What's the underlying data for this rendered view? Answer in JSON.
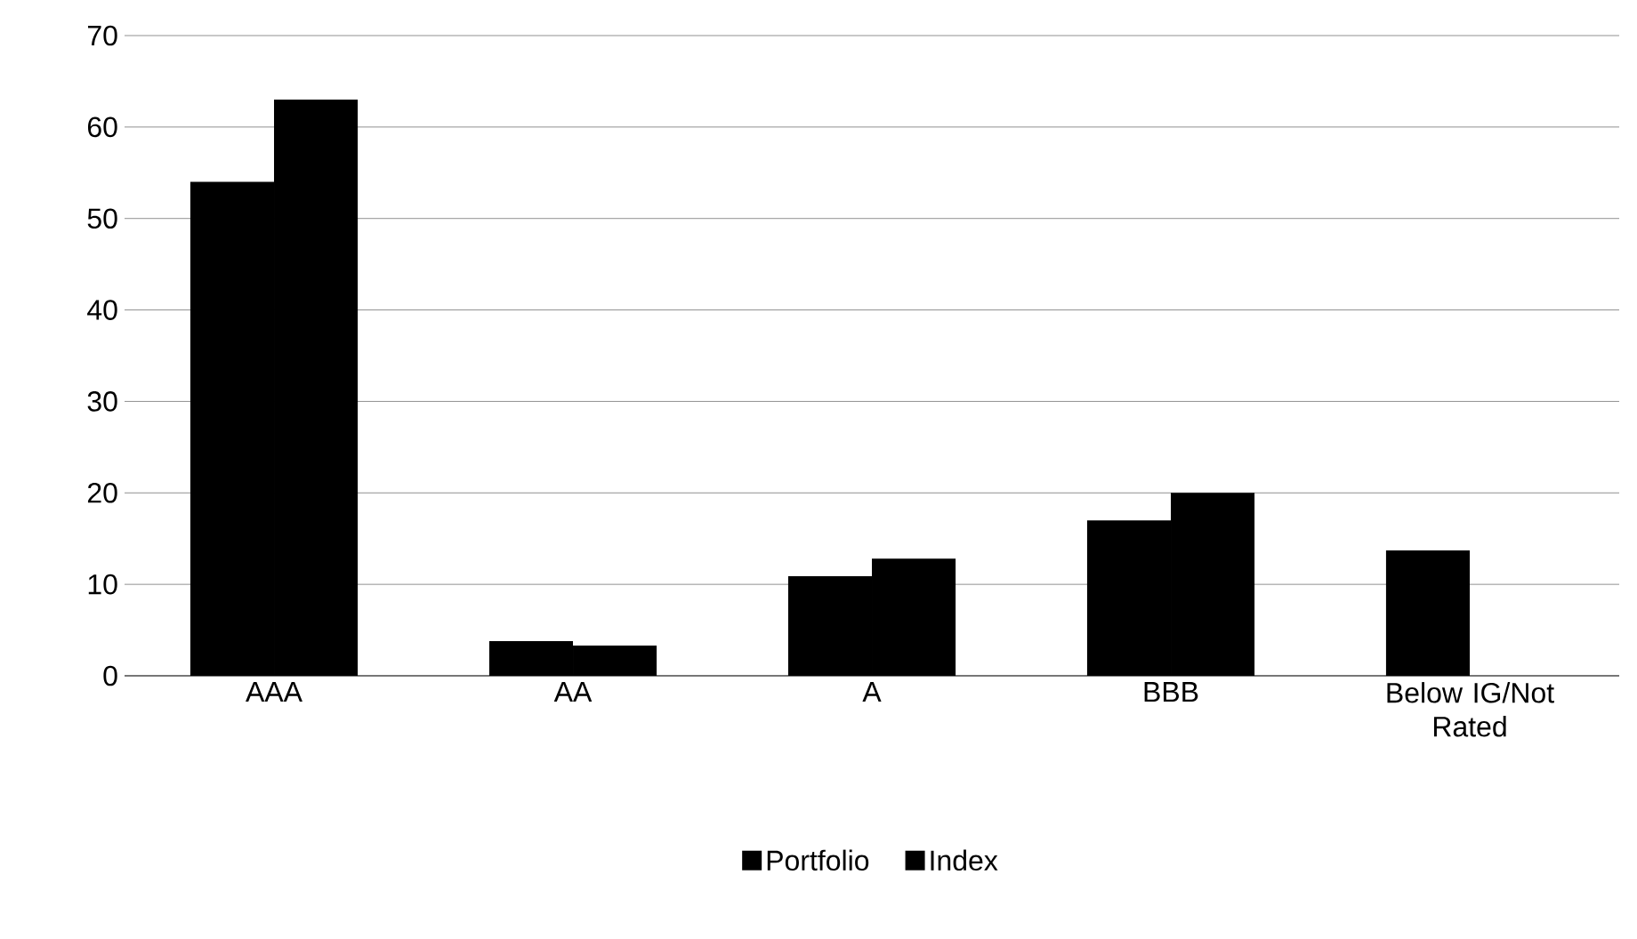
{
  "chart_data": {
    "type": "bar",
    "categories": [
      "AAA",
      "AA",
      "A",
      "BBB",
      "Below IG/Not Rated"
    ],
    "series": [
      {
        "name": "Portfolio",
        "color": "#000000",
        "values": [
          54,
          3.8,
          10.9,
          17,
          13.7
        ]
      },
      {
        "name": "Index",
        "color": "#000000",
        "values": [
          63,
          3.3,
          12.8,
          20,
          null
        ]
      }
    ],
    "ylim": [
      0,
      70
    ],
    "yticks": [
      0,
      10,
      20,
      30,
      40,
      50,
      60,
      70
    ],
    "grid": "y",
    "legend": "bottom"
  }
}
